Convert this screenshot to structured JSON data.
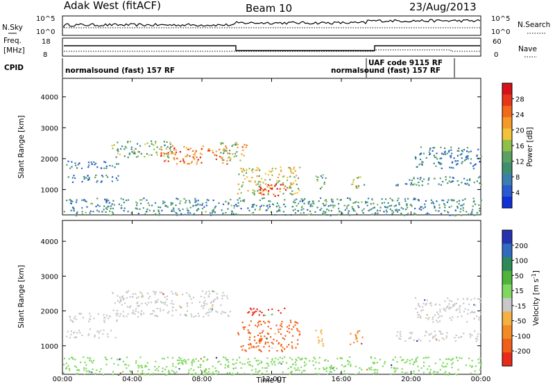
{
  "header": {
    "title": "Adak West (fitACF)",
    "beam": "Beam 10",
    "date": "23/Aug/2013"
  },
  "top_strip": {
    "nsky_label": "N.Sky",
    "nsky_ticks": [
      "10^5",
      "10^0"
    ],
    "nsearch_label": "N.Search",
    "nsearch_ticks": [
      "10^5",
      "10^0"
    ],
    "freq_label_line1": "Freq.",
    "freq_label_line2": "[MHz]",
    "freq_ticks": [
      "18",
      "8"
    ],
    "nave_label": "Nave",
    "nave_ticks": [
      "60",
      "0"
    ],
    "cpid_label": "CPID",
    "cpid_segments": [
      {
        "text": "normalsound (fast) 157 RF"
      },
      {
        "text": "UAF code 9115 RF"
      },
      {
        "text": "normalsound (fast) 157 RF"
      }
    ]
  },
  "chart_data": [
    {
      "type": "heatmap",
      "panel": "power",
      "ylabel": "Slant Range [km]",
      "ylim": [
        180,
        4600
      ],
      "yticks": [
        "1000",
        "2000",
        "3000",
        "4000"
      ],
      "xlim_hours": [
        0,
        24
      ],
      "colorbar": {
        "label": "Power [dB]",
        "ticks": [
          "4",
          "8",
          "12",
          "16",
          "20",
          "24",
          "28"
        ],
        "colors": [
          "#1030d8",
          "#2a5ad0",
          "#3a7fb0",
          "#3f8f6e",
          "#5aa060",
          "#8fc04a",
          "#f2c23a",
          "#f59a28",
          "#f26a1a",
          "#e8361a",
          "#d8101a"
        ]
      },
      "echo_regions": [
        {
          "t0": 0.2,
          "t1": 3.3,
          "r0": 1700,
          "r1": 1950,
          "level": 0.25
        },
        {
          "t0": 0.2,
          "t1": 3.2,
          "r0": 1250,
          "r1": 1500,
          "level": 0.25
        },
        {
          "t0": 2.8,
          "t1": 6.3,
          "r0": 2050,
          "r1": 2600,
          "level": 0.4
        },
        {
          "t0": 5.6,
          "t1": 9.6,
          "r0": 1850,
          "r1": 2450,
          "level": 0.75
        },
        {
          "t0": 9.0,
          "t1": 10.2,
          "r0": 1950,
          "r1": 2550,
          "level": 0.45
        },
        {
          "t0": 10.0,
          "t1": 10.6,
          "r0": 2100,
          "r1": 2500,
          "level": 0.7
        },
        {
          "t0": 10.0,
          "t1": 13.6,
          "r0": 850,
          "r1": 1750,
          "level": 0.55
        },
        {
          "t0": 11.3,
          "t1": 12.8,
          "r0": 800,
          "r1": 1200,
          "level": 0.95
        },
        {
          "t0": 14.5,
          "t1": 15.1,
          "r0": 1000,
          "r1": 1500,
          "level": 0.4
        },
        {
          "t0": 16.4,
          "t1": 17.3,
          "r0": 1050,
          "r1": 1450,
          "level": 0.45
        },
        {
          "t0": 20.2,
          "t1": 24.0,
          "r0": 1700,
          "r1": 2400,
          "level": 0.25
        },
        {
          "t0": 19.0,
          "t1": 24.0,
          "r0": 1150,
          "r1": 1450,
          "level": 0.3
        },
        {
          "t0": 0.0,
          "t1": 24.0,
          "r0": 180,
          "r1": 750,
          "level": 0.3
        }
      ]
    },
    {
      "type": "heatmap",
      "panel": "velocity",
      "ylabel": "Slant Range [km]",
      "ylim": [
        180,
        4600
      ],
      "yticks": [
        "1000",
        "2000",
        "3000",
        "4000"
      ],
      "xlim_hours": [
        0,
        24
      ],
      "xticks": [
        "00:00",
        "04:00",
        "08:00",
        "12:00",
        "16:00",
        "20:00",
        "00:00"
      ],
      "xlabel": "Time UT",
      "colorbar": {
        "label_parts": [
          "Velocity [m s",
          "-1",
          "]"
        ],
        "ticks": [
          "200",
          "100",
          "50",
          "15",
          "-15",
          "-50",
          "-100",
          "-200"
        ],
        "colors": [
          "#2533b0",
          "#2f6cc0",
          "#2f8a58",
          "#4fb43c",
          "#80d860",
          "#c8c8c8",
          "#f4b040",
          "#f48a24",
          "#f06018",
          "#e82a18"
        ]
      },
      "echo_regions": [
        {
          "t0": 0.2,
          "t1": 3.3,
          "r0": 1700,
          "r1": 1950,
          "color": "#c8c8c8"
        },
        {
          "t0": 0.2,
          "t1": 3.2,
          "r0": 1250,
          "r1": 1500,
          "color": "#c8c8c8"
        },
        {
          "t0": 2.8,
          "t1": 9.6,
          "r0": 1850,
          "r1": 2600,
          "color": "#c8c8c8"
        },
        {
          "t0": 10.0,
          "t1": 13.6,
          "r0": 850,
          "r1": 1750,
          "color": "#f06018"
        },
        {
          "t0": 10.5,
          "t1": 12.8,
          "r0": 1850,
          "r1": 2100,
          "color": "#e82a18"
        },
        {
          "t0": 14.5,
          "t1": 15.1,
          "r0": 1000,
          "r1": 1500,
          "color": "#f4b040"
        },
        {
          "t0": 16.4,
          "t1": 17.3,
          "r0": 1050,
          "r1": 1450,
          "color": "#f48a24"
        },
        {
          "t0": 19.0,
          "t1": 24.0,
          "r0": 1150,
          "r1": 1450,
          "color": "#c8c8c8"
        },
        {
          "t0": 20.2,
          "t1": 24.0,
          "r0": 1700,
          "r1": 2400,
          "color": "#c8c8c8"
        },
        {
          "t0": 0.0,
          "t1": 24.0,
          "r0": 180,
          "r1": 700,
          "color": "#80d860"
        }
      ]
    }
  ]
}
